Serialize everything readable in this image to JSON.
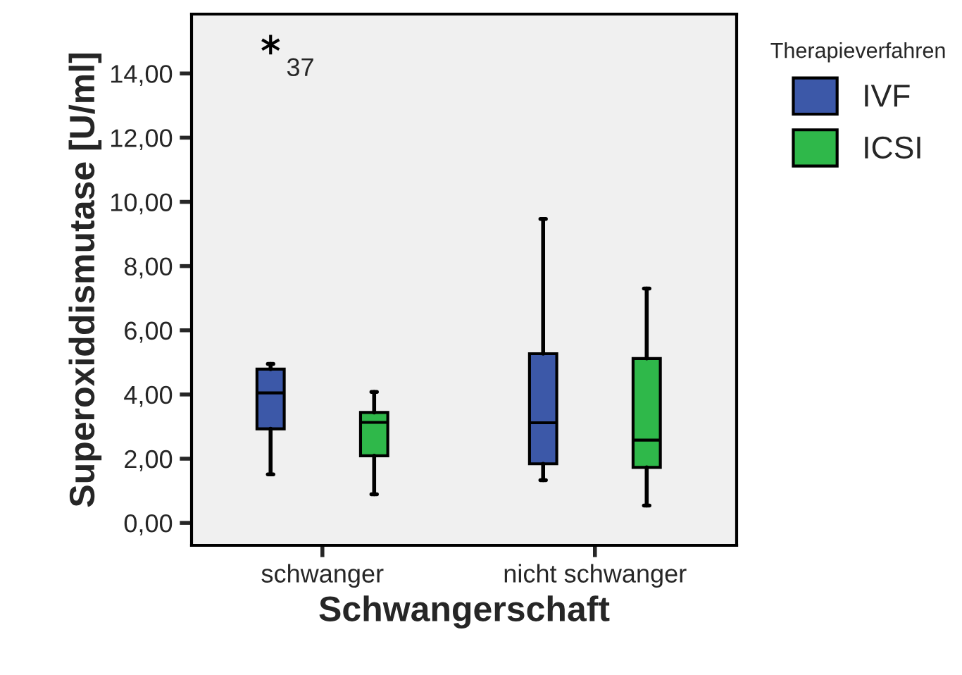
{
  "chart_data": {
    "type": "box",
    "xlabel": "Schwangerschaft",
    "ylabel": "Superoxiddismutase [U/ml]",
    "legend_title": "Therapieverfahren",
    "categories": [
      "schwanger",
      "nicht schwanger"
    ],
    "series": [
      {
        "name": "IVF",
        "color": "#3c58a8",
        "boxes": [
          {
            "low": 1.51,
            "q1": 2.93,
            "median": 4.05,
            "q3": 4.79,
            "high": 4.95,
            "outliers": [
              14.9
            ]
          },
          {
            "low": 1.33,
            "q1": 1.84,
            "median": 3.12,
            "q3": 5.27,
            "high": 9.47
          }
        ]
      },
      {
        "name": "ICSI",
        "color": "#2fb84a",
        "boxes": [
          {
            "low": 0.89,
            "q1": 2.09,
            "median": 3.13,
            "q3": 3.44,
            "high": 4.08
          },
          {
            "low": 0.54,
            "q1": 1.73,
            "median": 2.58,
            "q3": 5.12,
            "high": 7.3
          }
        ]
      }
    ],
    "annotations": [
      "37"
    ],
    "ylim": [
      -0.7,
      15.85
    ],
    "yticks": [
      {
        "value": 0,
        "label": "0,00"
      },
      {
        "value": 2,
        "label": "2,00"
      },
      {
        "value": 4,
        "label": "4,00"
      },
      {
        "value": 6,
        "label": "6,00"
      },
      {
        "value": 8,
        "label": "8,00"
      },
      {
        "value": 10,
        "label": "10,00"
      },
      {
        "value": 12,
        "label": "12,00"
      },
      {
        "value": 14,
        "label": "14,00"
      }
    ],
    "grid": false,
    "legend": "top right"
  }
}
